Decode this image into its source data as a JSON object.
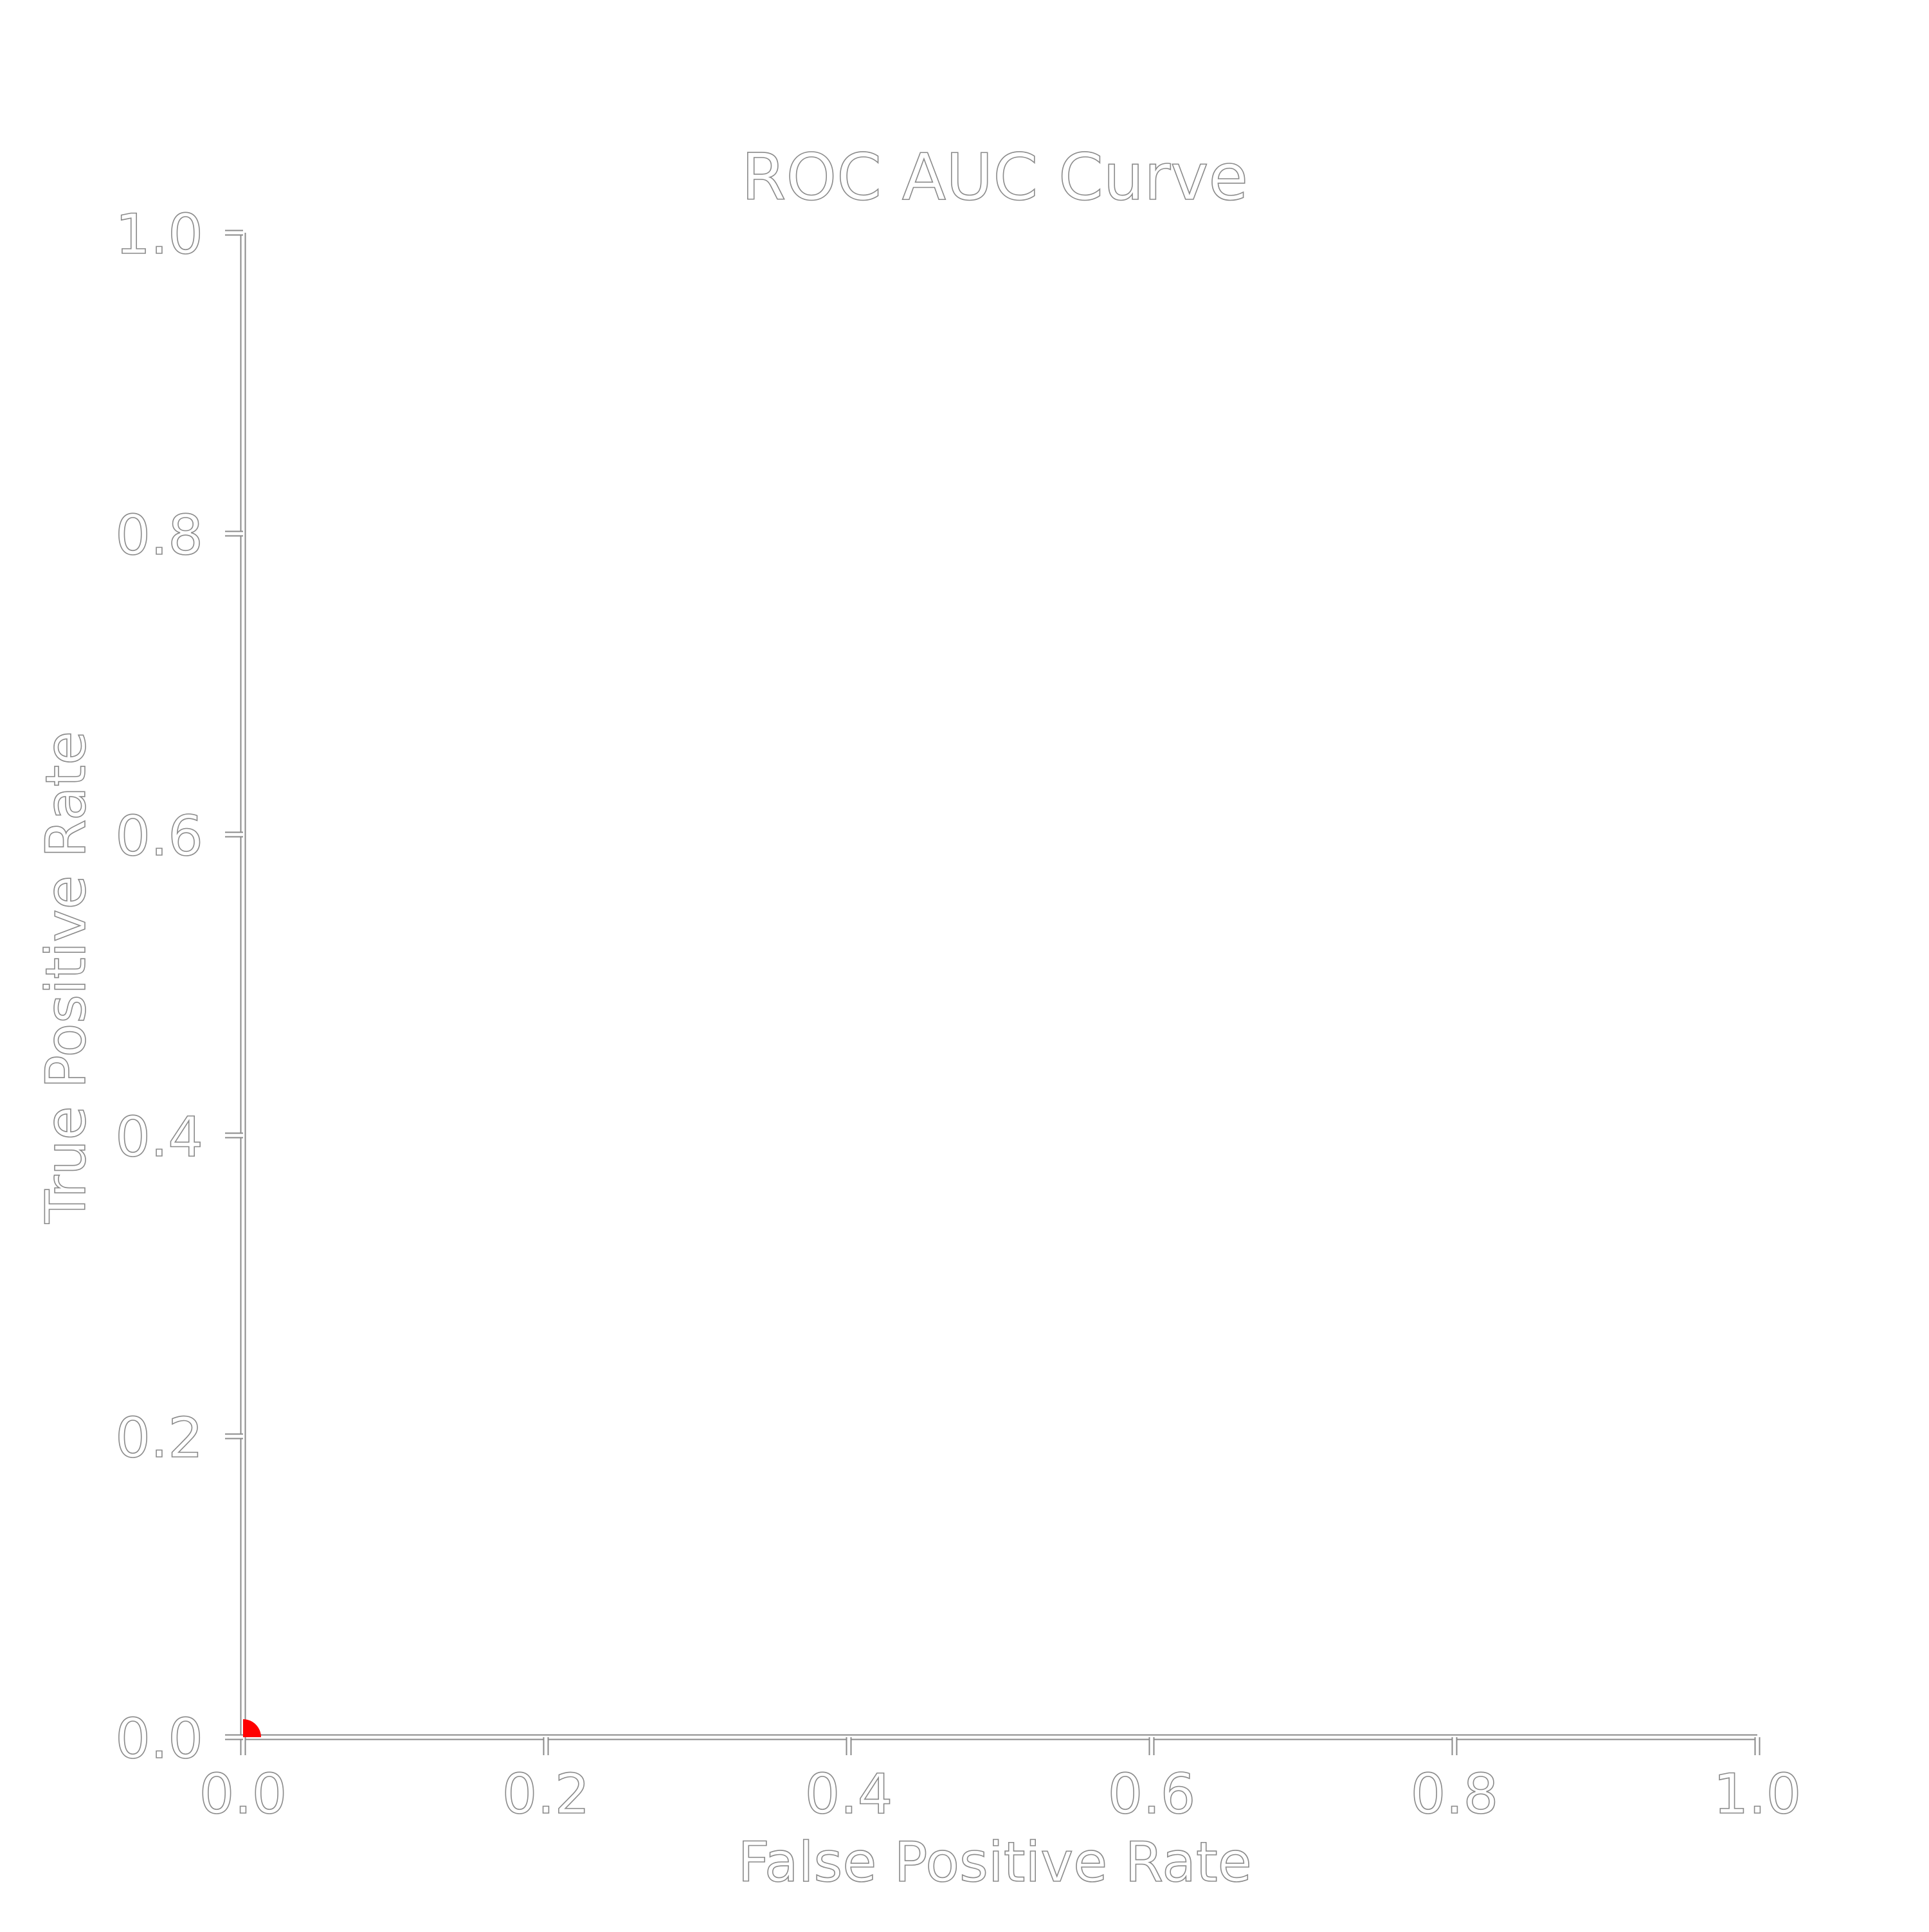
{
  "chart_data": {
    "type": "scatter",
    "title": "ROC AUC Curve",
    "xlabel": "False Positive Rate",
    "ylabel": "True Positive Rate",
    "xlim": [
      0.0,
      1.0
    ],
    "ylim": [
      0.0,
      1.0
    ],
    "xticks": [
      "0.0",
      "0.2",
      "0.4",
      "0.6",
      "0.8",
      "1.0"
    ],
    "yticks": [
      "0.0",
      "0.2",
      "0.4",
      "0.6",
      "0.8",
      "1.0"
    ],
    "grid": false,
    "series": [
      {
        "points": [
          {
            "x": 0.0,
            "y": 0.0
          }
        ],
        "color": "#ff0000"
      }
    ]
  }
}
